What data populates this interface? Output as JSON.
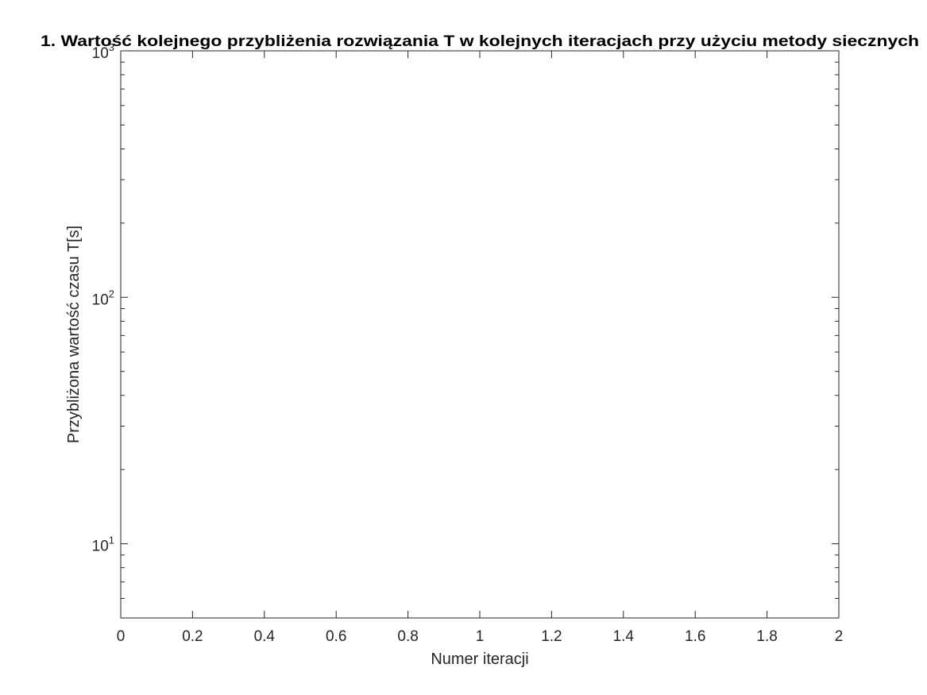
{
  "chart_data": {
    "type": "line",
    "title": "1. Wartość kolejnego przybliżenia rozwiązania T w kolejnych iteracjach przy użyciu metody siecznych",
    "xlabel": "Numer iteracji",
    "ylabel": "Przybliżona wartość czasu T[s]",
    "xlim": [
      0,
      2
    ],
    "ylim": [
      5,
      1000
    ],
    "yscale": "log",
    "x_ticks": [
      0,
      0.2,
      0.4,
      0.6,
      0.8,
      1,
      1.2,
      1.4,
      1.6,
      1.8,
      2
    ],
    "x_tick_labels": [
      "0",
      "0.2",
      "0.4",
      "0.6",
      "0.8",
      "1",
      "1.2",
      "1.4",
      "1.6",
      "1.8",
      "2"
    ],
    "y_ticks": [
      {
        "value": 1000,
        "base": "10",
        "exponent": "3"
      },
      {
        "value": 100,
        "base": "10",
        "exponent": "2"
      },
      {
        "value": 10,
        "base": "10",
        "exponent": "1"
      }
    ],
    "grid": false,
    "series": [],
    "colors": {
      "axis": "#262626",
      "background": "#ffffff",
      "title": "#000000"
    }
  }
}
